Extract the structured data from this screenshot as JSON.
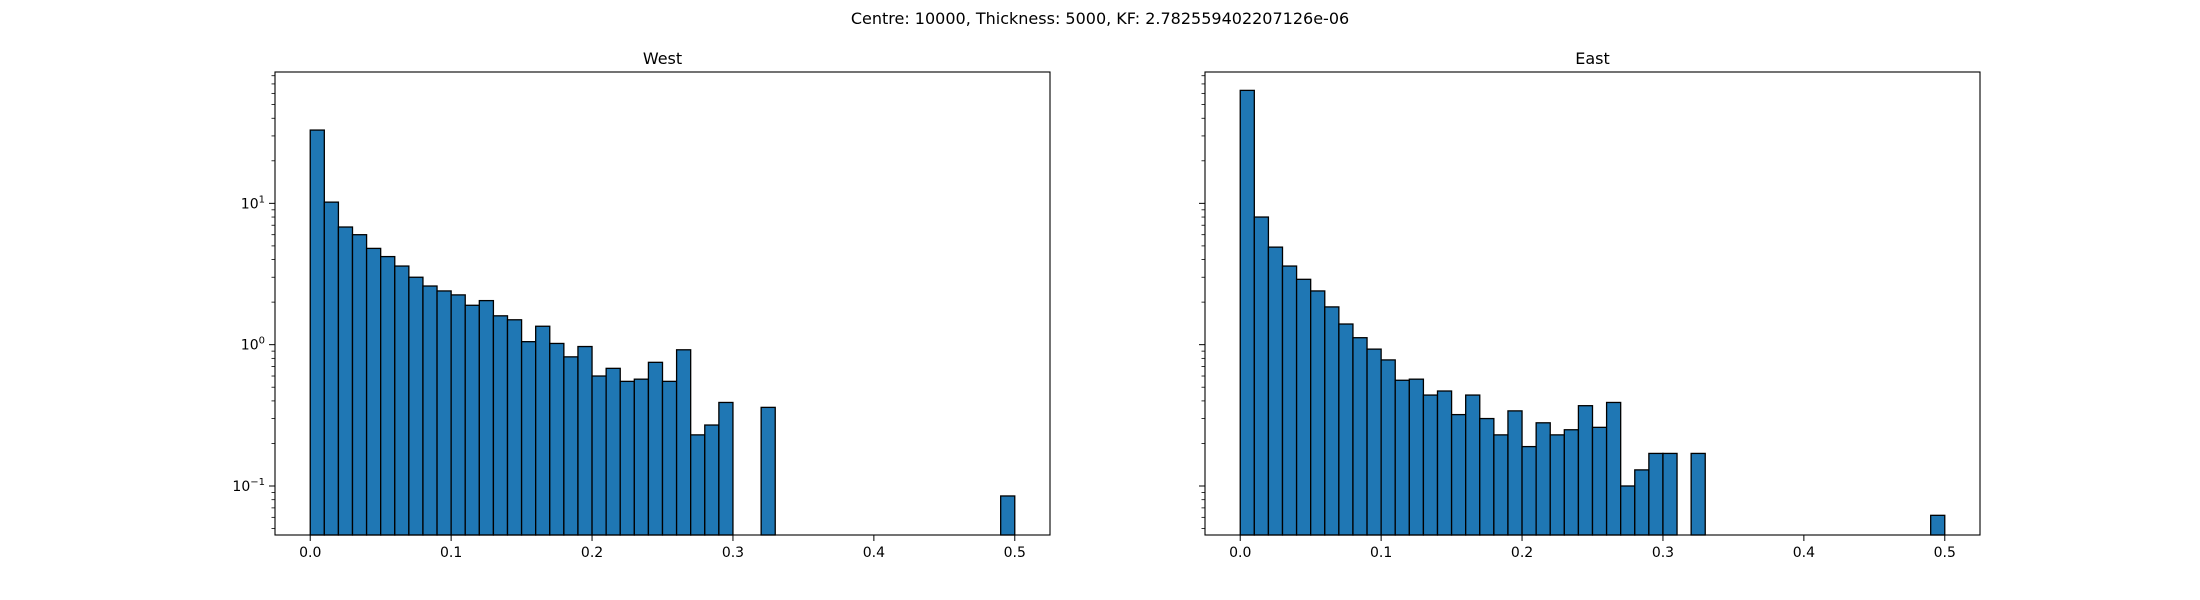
{
  "figure": {
    "suptitle": "Centre: 10000, Thickness: 5000, KF: 2.782559402207126e-06"
  },
  "chart_data": [
    {
      "type": "bar",
      "title": "West",
      "xlabel": "",
      "ylabel": "",
      "yscale": "log",
      "xlim": [
        -0.025,
        0.525
      ],
      "ylim": [
        0.045,
        85
      ],
      "xticks": [
        0.0,
        0.1,
        0.2,
        0.3,
        0.4,
        0.5
      ],
      "xtick_labels": [
        "0.0",
        "0.1",
        "0.2",
        "0.3",
        "0.4",
        "0.5"
      ],
      "yticks": [
        0.1,
        1,
        10
      ],
      "grid": false,
      "legend": "none",
      "bin_width": 0.01,
      "bin_lefts": [
        0.0,
        0.01,
        0.02,
        0.03,
        0.04,
        0.05,
        0.06,
        0.07,
        0.08,
        0.09,
        0.1,
        0.11,
        0.12,
        0.13,
        0.14,
        0.15,
        0.16,
        0.17,
        0.18,
        0.19,
        0.2,
        0.21,
        0.22,
        0.23,
        0.24,
        0.25,
        0.26,
        0.27,
        0.28,
        0.29,
        0.32,
        0.49
      ],
      "values": [
        33,
        10.2,
        6.8,
        6.0,
        4.8,
        4.2,
        3.6,
        3.0,
        2.6,
        2.4,
        2.25,
        1.9,
        2.05,
        1.6,
        1.5,
        1.05,
        1.35,
        1.02,
        0.82,
        0.97,
        0.6,
        0.68,
        0.55,
        0.57,
        0.75,
        0.55,
        0.92,
        0.23,
        0.27,
        0.39,
        0.36,
        0.085
      ],
      "bar_color": "#1f77b4",
      "edge_color": "#000000"
    },
    {
      "type": "bar",
      "title": "East",
      "xlabel": "",
      "ylabel": "",
      "yscale": "log",
      "xlim": [
        -0.025,
        0.525
      ],
      "ylim": [
        0.045,
        85
      ],
      "xticks": [
        0.0,
        0.1,
        0.2,
        0.3,
        0.4,
        0.5
      ],
      "xtick_labels": [
        "0.0",
        "0.1",
        "0.2",
        "0.3",
        "0.4",
        "0.5"
      ],
      "yticks": [
        0.1,
        1,
        10
      ],
      "grid": false,
      "legend": "none",
      "bin_width": 0.01,
      "bin_lefts": [
        0.0,
        0.01,
        0.02,
        0.03,
        0.04,
        0.05,
        0.06,
        0.07,
        0.08,
        0.09,
        0.1,
        0.11,
        0.12,
        0.13,
        0.14,
        0.15,
        0.16,
        0.17,
        0.18,
        0.19,
        0.2,
        0.21,
        0.22,
        0.23,
        0.24,
        0.25,
        0.26,
        0.27,
        0.28,
        0.29,
        0.3,
        0.32,
        0.49
      ],
      "values": [
        63,
        8.0,
        4.9,
        3.6,
        2.9,
        2.4,
        1.85,
        1.4,
        1.12,
        0.93,
        0.78,
        0.56,
        0.57,
        0.44,
        0.47,
        0.32,
        0.44,
        0.3,
        0.23,
        0.34,
        0.19,
        0.28,
        0.23,
        0.25,
        0.37,
        0.26,
        0.39,
        0.1,
        0.13,
        0.17,
        0.17,
        0.17,
        0.062
      ],
      "bar_color": "#1f77b4",
      "edge_color": "#000000"
    }
  ]
}
